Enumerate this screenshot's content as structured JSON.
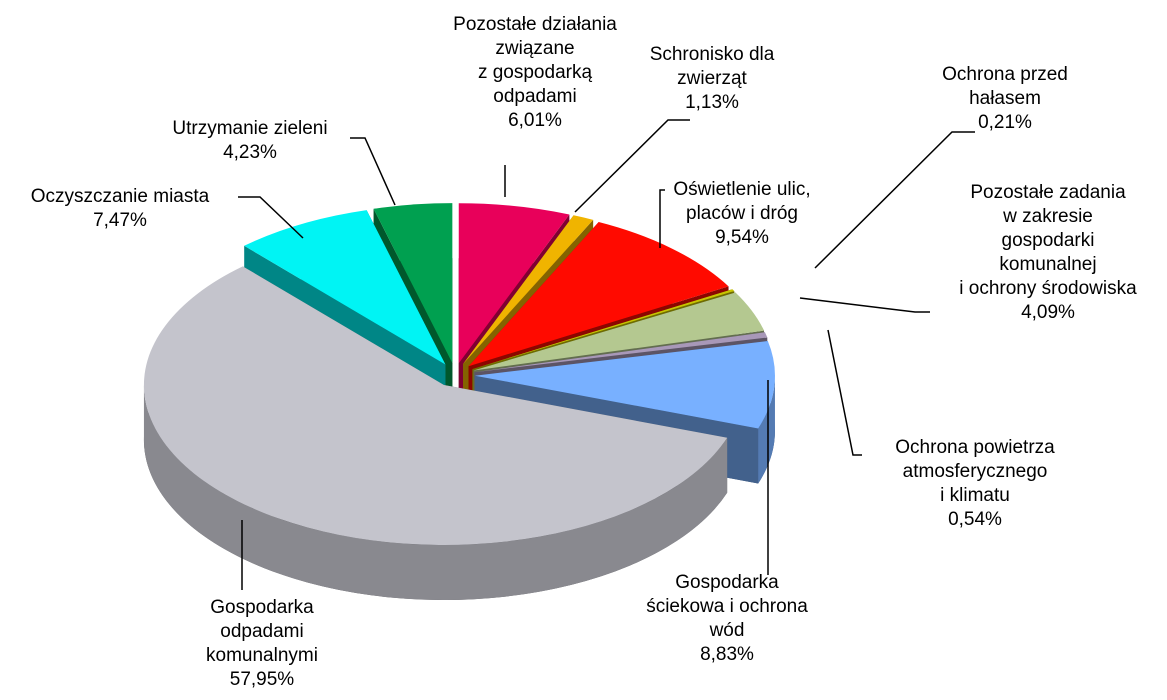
{
  "chart_data": {
    "type": "pie3d",
    "categories": [
      [
        "Pozostałe działania",
        "związane",
        "z gospodarką",
        "odpadami"
      ],
      [
        "Schronisko dla",
        "zwierząt"
      ],
      [
        "Oświetlenie ulic,",
        "placów i dróg"
      ],
      [
        "Ochrona przed",
        "hałasem"
      ],
      [
        "Pozostałe zadania",
        "w zakresie",
        "gospodarki",
        "komunalnej",
        "i ochrony środowiska"
      ],
      [
        "Ochrona powietrza",
        "atmosferycznego",
        "i klimatu"
      ],
      [
        "Gospodarka",
        "ściekowa i ochrona",
        "wód"
      ],
      [
        "Gospodarka",
        "odpadami",
        "komunalnymi"
      ],
      [
        "Oczyszczanie miasta"
      ],
      [
        "Utrzymanie zieleni"
      ]
    ],
    "values": [
      6.01,
      1.13,
      9.54,
      0.21,
      4.09,
      0.54,
      8.83,
      57.95,
      7.47,
      4.23
    ],
    "value_labels": [
      "6,01%",
      "1,13%",
      "9,54%",
      "0,21%",
      "4,09%",
      "0,54%",
      "8,83%",
      "57,95%",
      "7,47%",
      "4,23%"
    ],
    "colors": [
      "#e8005a",
      "#f0b400",
      "#ff0a00",
      "#c8c400",
      "#b4c890",
      "#a898b8",
      "#78b0ff",
      "#c4c4cc",
      "#00f4f4",
      "#00a050"
    ]
  }
}
